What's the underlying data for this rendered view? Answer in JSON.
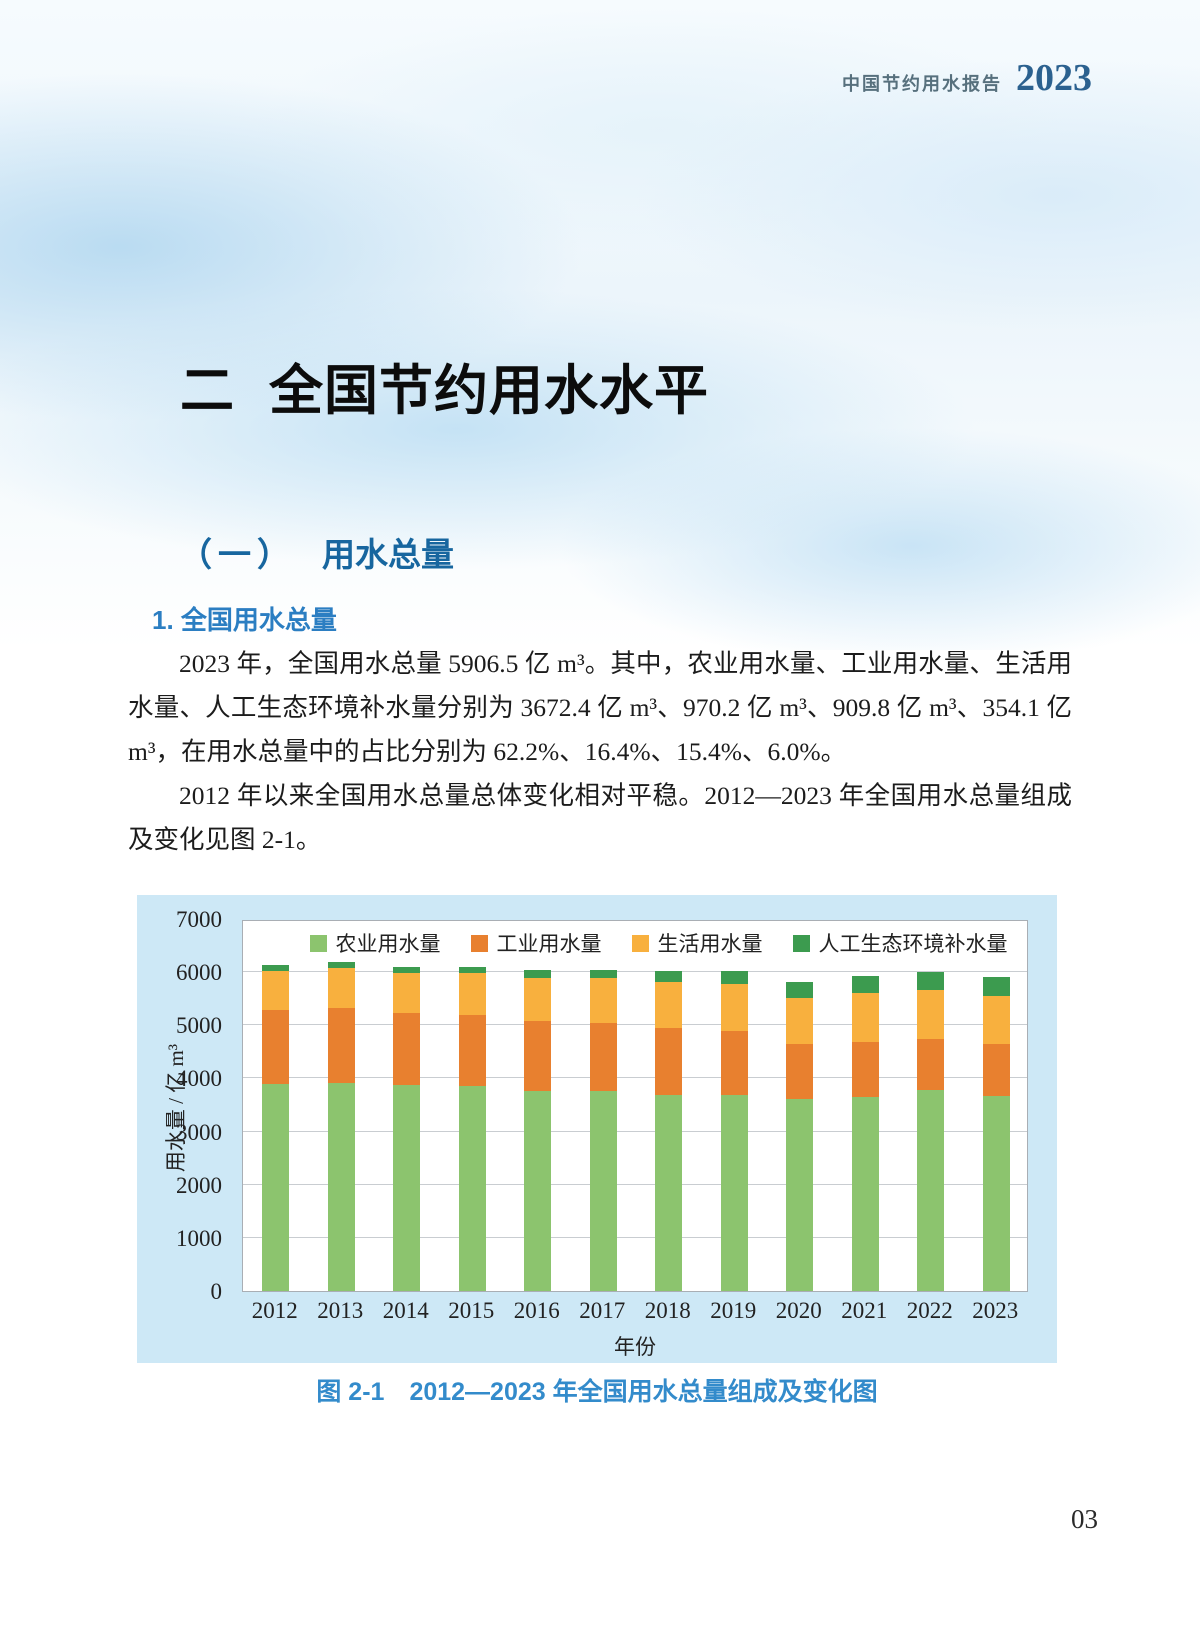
{
  "header": {
    "report_title": "中国节约用水报告",
    "report_year": "2023"
  },
  "section": {
    "number": "二",
    "title": "全国节约用水水平"
  },
  "subsection": {
    "number": "（一）",
    "title": "用水总量"
  },
  "subheading": "1. 全国用水总量",
  "paragraphs": {
    "p1": "2023 年，全国用水总量 5906.5 亿 m³。其中，农业用水量、工业用水量、生活用水量、人工生态环境补水量分别为 3672.4 亿 m³、970.2 亿 m³、909.8 亿 m³、354.1 亿 m³，在用水总量中的占比分别为 62.2%、16.4%、15.4%、6.0%。",
    "p2": "2012 年以来全国用水总量总体变化相对平稳。2012—2023 年全国用水总量组成及变化见图 2-1。"
  },
  "figure_caption": "图 2-1　2012—2023 年全国用水总量组成及变化图",
  "page_number": "03",
  "colors": {
    "heading_blue": "#17669f",
    "subheading_blue": "#2b7ec2",
    "caption_blue": "#338bcb",
    "chart_background": "#cde8f6"
  },
  "chart_data": {
    "type": "bar",
    "stacked": true,
    "title": "",
    "xlabel": "年份",
    "ylabel": "用水量 / 亿 m³",
    "ylim": [
      0,
      7000
    ],
    "ytick_step": 1000,
    "grid": "horizontal",
    "legend_position": "top-inside",
    "categories": [
      "2012",
      "2013",
      "2014",
      "2015",
      "2016",
      "2017",
      "2018",
      "2019",
      "2020",
      "2021",
      "2022",
      "2023"
    ],
    "series": [
      {
        "name": "农业用水量",
        "color": "#8cc46e",
        "values": [
          3902.5,
          3921.5,
          3869.0,
          3852.2,
          3768.0,
          3766.4,
          3693.1,
          3682.3,
          3612.4,
          3644.3,
          3781.3,
          3672.4
        ]
      },
      {
        "name": "工业用水量",
        "color": "#e8802f",
        "values": [
          1380.7,
          1406.4,
          1356.1,
          1334.8,
          1308.0,
          1277.0,
          1261.6,
          1217.7,
          1030.4,
          1049.6,
          968.4,
          970.2
        ]
      },
      {
        "name": "生活用水量",
        "color": "#f8b03e",
        "values": [
          739.7,
          750.1,
          766.6,
          793.5,
          821.6,
          838.1,
          859.9,
          871.7,
          863.1,
          909.4,
          905.7,
          909.8
        ]
      },
      {
        "name": "人工生态环境补水量",
        "color": "#3c9b4f",
        "values": [
          108.3,
          105.4,
          103.2,
          122.7,
          142.6,
          161.9,
          200.9,
          249.6,
          307.0,
          316.9,
          342.8,
          354.1
        ]
      }
    ]
  }
}
